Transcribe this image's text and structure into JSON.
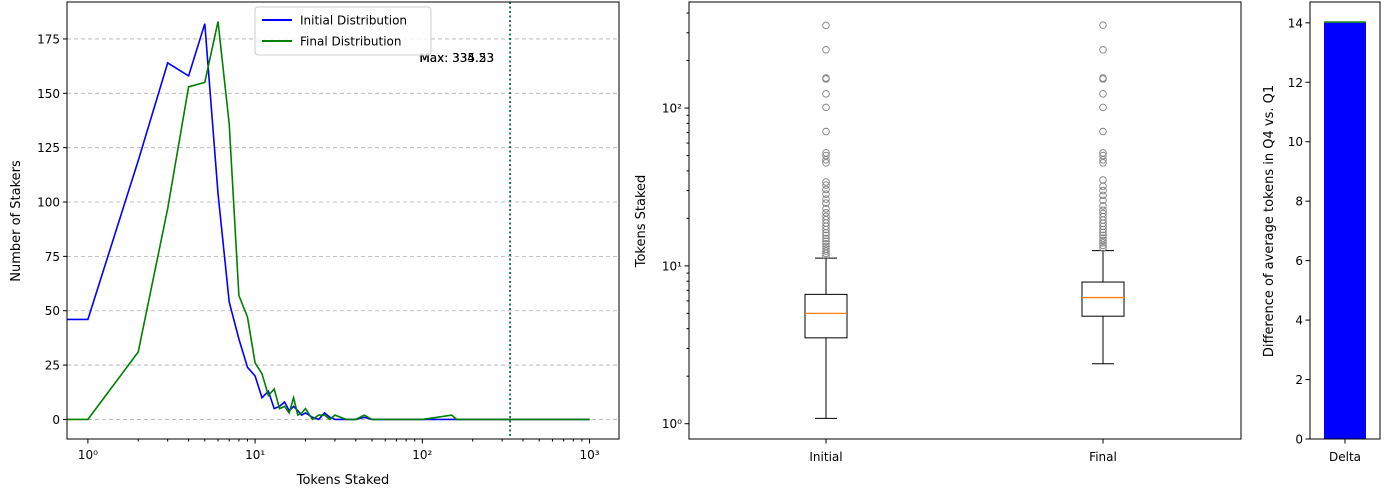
{
  "colors": {
    "initial": "#0000ff",
    "final": "#008000",
    "median": "#ff7f0e",
    "flier": "#808080",
    "max_line": "#1f5f5f"
  },
  "chart_data": [
    {
      "type": "line",
      "xlabel": "Tokens Staked",
      "ylabel": "Number of Stakers",
      "xscale": "log",
      "xlim": [
        0.75,
        1500
      ],
      "ylim": [
        -9,
        192
      ],
      "xticks": [
        1,
        10,
        100,
        1000
      ],
      "xtick_labels": [
        "10⁰",
        "10¹",
        "10²",
        "10³"
      ],
      "yticks": [
        0,
        25,
        50,
        75,
        100,
        125,
        150,
        175
      ],
      "ytick_labels": [
        "0",
        "25",
        "50",
        "75",
        "100",
        "125",
        "150",
        "175"
      ],
      "grid": "y",
      "legend": "upper center",
      "series": [
        {
          "name": "Initial Distribution",
          "color": "initial",
          "points": [
            [
              0.7,
              46
            ],
            [
              1,
              46
            ],
            [
              2,
              119
            ],
            [
              3,
              164
            ],
            [
              4,
              158
            ],
            [
              5,
              182
            ],
            [
              6,
              104
            ],
            [
              7,
              54
            ],
            [
              8,
              37
            ],
            [
              9,
              24
            ],
            [
              10,
              20
            ],
            [
              11,
              10
            ],
            [
              12,
              13
            ],
            [
              13,
              5
            ],
            [
              14,
              6
            ],
            [
              15,
              8
            ],
            [
              16,
              4
            ],
            [
              17,
              6
            ],
            [
              18,
              4
            ],
            [
              19,
              2
            ],
            [
              20,
              3
            ],
            [
              22,
              1
            ],
            [
              24,
              0
            ],
            [
              26,
              3
            ],
            [
              28,
              1
            ],
            [
              30,
              0
            ],
            [
              35,
              0
            ],
            [
              40,
              0
            ],
            [
              45,
              1
            ],
            [
              50,
              0
            ],
            [
              70,
              0
            ],
            [
              100,
              0
            ],
            [
              150,
              0
            ],
            [
              300,
              0
            ],
            [
              1000,
              0
            ]
          ]
        },
        {
          "name": "Final Distribution",
          "color": "final",
          "points": [
            [
              0.7,
              0
            ],
            [
              1,
              0
            ],
            [
              2,
              31
            ],
            [
              3,
              97
            ],
            [
              4,
              153
            ],
            [
              5,
              155
            ],
            [
              6,
              183
            ],
            [
              7,
              136
            ],
            [
              8,
              57
            ],
            [
              9,
              47
            ],
            [
              10,
              26
            ],
            [
              11,
              21
            ],
            [
              12,
              11
            ],
            [
              13,
              14
            ],
            [
              14,
              5
            ],
            [
              15,
              6
            ],
            [
              16,
              3
            ],
            [
              17,
              10
            ],
            [
              18,
              2
            ],
            [
              19,
              3
            ],
            [
              20,
              5
            ],
            [
              22,
              0
            ],
            [
              24,
              2
            ],
            [
              26,
              2
            ],
            [
              28,
              0
            ],
            [
              30,
              2
            ],
            [
              35,
              0
            ],
            [
              40,
              0
            ],
            [
              45,
              2
            ],
            [
              50,
              0
            ],
            [
              70,
              0
            ],
            [
              100,
              0
            ],
            [
              150,
              2
            ],
            [
              160,
              0
            ],
            [
              300,
              0
            ],
            [
              1000,
              0
            ]
          ]
        }
      ],
      "vlines": [
        {
          "x": 334.23,
          "label": "Max: 334.23",
          "color": "initial"
        },
        {
          "x": 335.53,
          "label": "Max: 335.53",
          "color": "final"
        }
      ]
    },
    {
      "type": "box",
      "ylabel": "Tokens Staked",
      "yscale": "log",
      "ylim": [
        0.8,
        470
      ],
      "yticks": [
        1,
        10,
        100
      ],
      "ytick_labels": [
        "10⁰",
        "10¹",
        "10²"
      ],
      "categories": [
        "Initial",
        "Final"
      ],
      "boxes": [
        {
          "whisker_low": 1.08,
          "q1": 3.5,
          "median": 5.0,
          "q3": 6.6,
          "whisker_high": 11.2,
          "fliers": [
            11.6,
            12.0,
            12.4,
            12.8,
            13.3,
            13.8,
            14.3,
            14.9,
            15.6,
            16.2,
            17.0,
            17.8,
            18.7,
            19.6,
            20.6,
            21.7,
            23.0,
            25.0,
            26.5,
            28.5,
            30.5,
            32.5,
            34.0,
            45.0,
            47.0,
            50.0,
            52.0,
            71.0,
            101.0,
            123.0,
            153.0,
            155.0,
            234.0,
            334.23
          ]
        },
        {
          "whisker_low": 2.4,
          "q1": 4.8,
          "median": 6.3,
          "q3": 7.9,
          "whisker_high": 12.5,
          "fliers": [
            13.0,
            13.5,
            14.0,
            14.5,
            15.0,
            15.6,
            16.3,
            17.0,
            17.8,
            18.6,
            19.5,
            20.5,
            21.5,
            22.5,
            24.0,
            26.0,
            28.0,
            30.0,
            32.0,
            35.0,
            45.0,
            47.0,
            50.0,
            52.0,
            71.0,
            101.0,
            123.0,
            153.0,
            155.0,
            234.0,
            335.53
          ]
        }
      ]
    },
    {
      "type": "bar",
      "ylabel": "Difference of average tokens in Q4 vs. Q1",
      "ylim": [
        0,
        14.7
      ],
      "yticks": [
        0,
        2,
        4,
        6,
        8,
        10,
        12,
        14
      ],
      "ytick_labels": [
        "0",
        "2",
        "4",
        "6",
        "8",
        "10",
        "12",
        "14"
      ],
      "categories": [
        "Delta"
      ],
      "values": [
        14.0
      ],
      "top_values": [
        14.05
      ]
    }
  ]
}
